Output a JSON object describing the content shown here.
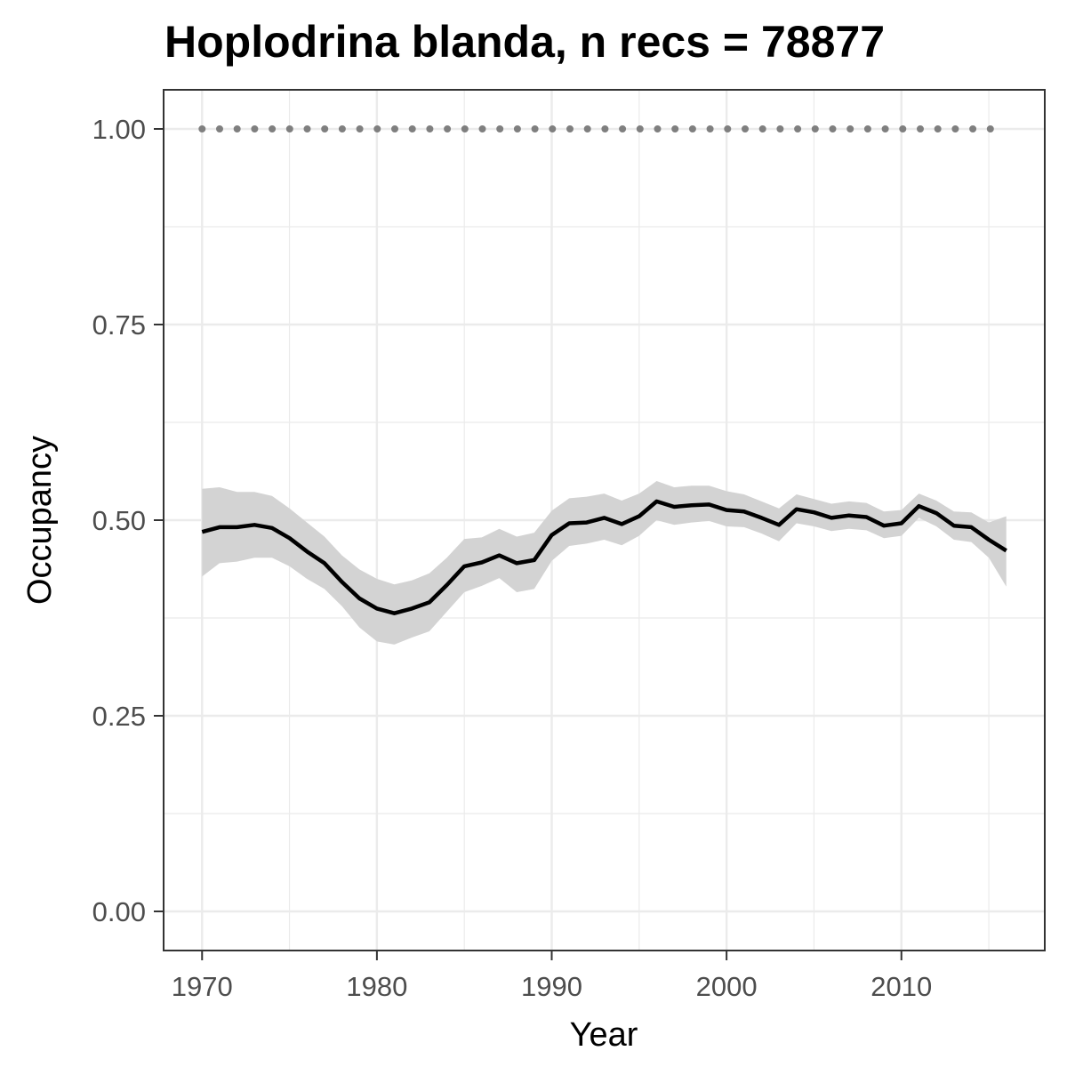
{
  "chart_data": {
    "type": "line",
    "title": "Hoplodrina blanda, n recs = 78877",
    "xlabel": "Year",
    "ylabel": "Occupancy",
    "xlim": [
      1967.8,
      2018.2
    ],
    "ylim": [
      -0.05,
      1.05
    ],
    "x_ticks": [
      1970,
      1980,
      1990,
      2000,
      2010
    ],
    "x_tick_labels": [
      "1970",
      "1980",
      "1990",
      "2000",
      "2010"
    ],
    "y_ticks": [
      0,
      0.25,
      0.5,
      0.75,
      1.0
    ],
    "y_tick_labels": [
      "0.00",
      "0.25",
      "0.50",
      "0.75",
      "1.00"
    ],
    "grid": true,
    "legend": "none",
    "colors": {
      "line": "#000000",
      "ribbon": "#d3d3d3",
      "reference": "#7f7f7f",
      "grid": "#ebebeb",
      "panel_border": "#333333"
    },
    "series": [
      {
        "style": "solid-line-with-ribbon",
        "x": [
          1970,
          1971,
          1972,
          1973,
          1974,
          1975,
          1976,
          1977,
          1978,
          1979,
          1980,
          1981,
          1982,
          1983,
          1984,
          1985,
          1986,
          1987,
          1988,
          1989,
          1990,
          1991,
          1992,
          1993,
          1994,
          1995,
          1996,
          1997,
          1998,
          1999,
          2000,
          2001,
          2002,
          2003,
          2004,
          2005,
          2006,
          2007,
          2008,
          2009,
          2010,
          2011,
          2012,
          2013,
          2014,
          2015,
          2016
        ],
        "values": [
          0.485,
          0.491,
          0.491,
          0.494,
          0.49,
          0.477,
          0.46,
          0.445,
          0.421,
          0.4,
          0.387,
          0.381,
          0.387,
          0.395,
          0.417,
          0.441,
          0.446,
          0.455,
          0.445,
          0.449,
          0.481,
          0.496,
          0.497,
          0.503,
          0.495,
          0.505,
          0.524,
          0.517,
          0.519,
          0.52,
          0.513,
          0.511,
          0.503,
          0.494,
          0.514,
          0.51,
          0.503,
          0.506,
          0.504,
          0.493,
          0.496,
          0.518,
          0.509,
          0.493,
          0.491,
          0.475,
          0.461
        ],
        "lower": [
          0.428,
          0.445,
          0.447,
          0.452,
          0.452,
          0.441,
          0.425,
          0.412,
          0.39,
          0.363,
          0.345,
          0.341,
          0.35,
          0.358,
          0.383,
          0.408,
          0.416,
          0.426,
          0.408,
          0.412,
          0.448,
          0.467,
          0.47,
          0.475,
          0.468,
          0.48,
          0.5,
          0.494,
          0.497,
          0.499,
          0.492,
          0.491,
          0.483,
          0.473,
          0.496,
          0.492,
          0.486,
          0.489,
          0.487,
          0.477,
          0.48,
          0.503,
          0.492,
          0.475,
          0.472,
          0.452,
          0.415
        ],
        "upper": [
          0.54,
          0.542,
          0.536,
          0.536,
          0.531,
          0.515,
          0.497,
          0.479,
          0.455,
          0.437,
          0.425,
          0.418,
          0.423,
          0.432,
          0.452,
          0.476,
          0.478,
          0.489,
          0.479,
          0.484,
          0.512,
          0.528,
          0.53,
          0.534,
          0.525,
          0.534,
          0.55,
          0.542,
          0.544,
          0.544,
          0.537,
          0.533,
          0.524,
          0.515,
          0.533,
          0.527,
          0.521,
          0.524,
          0.522,
          0.511,
          0.513,
          0.534,
          0.525,
          0.511,
          0.51,
          0.497,
          0.505
        ]
      },
      {
        "style": "dotted-line",
        "x": [
          1970,
          1971,
          1972,
          1973,
          1974,
          1975,
          1976,
          1977,
          1978,
          1979,
          1980,
          1981,
          1982,
          1983,
          1984,
          1985,
          1986,
          1987,
          1988,
          1989,
          1990,
          1991,
          1992,
          1993,
          1994,
          1995,
          1996,
          1997,
          1998,
          1999,
          2000,
          2001,
          2002,
          2003,
          2004,
          2005,
          2006,
          2007,
          2008,
          2009,
          2010,
          2011,
          2012,
          2013,
          2014,
          2015,
          2016
        ],
        "values": [
          1,
          1,
          1,
          1,
          1,
          1,
          1,
          1,
          1,
          1,
          1,
          1,
          1,
          1,
          1,
          1,
          1,
          1,
          1,
          1,
          1,
          1,
          1,
          1,
          1,
          1,
          1,
          1,
          1,
          1,
          1,
          1,
          1,
          1,
          1,
          1,
          1,
          1,
          1,
          1,
          1,
          1,
          1,
          1,
          1,
          1,
          1
        ]
      }
    ]
  }
}
